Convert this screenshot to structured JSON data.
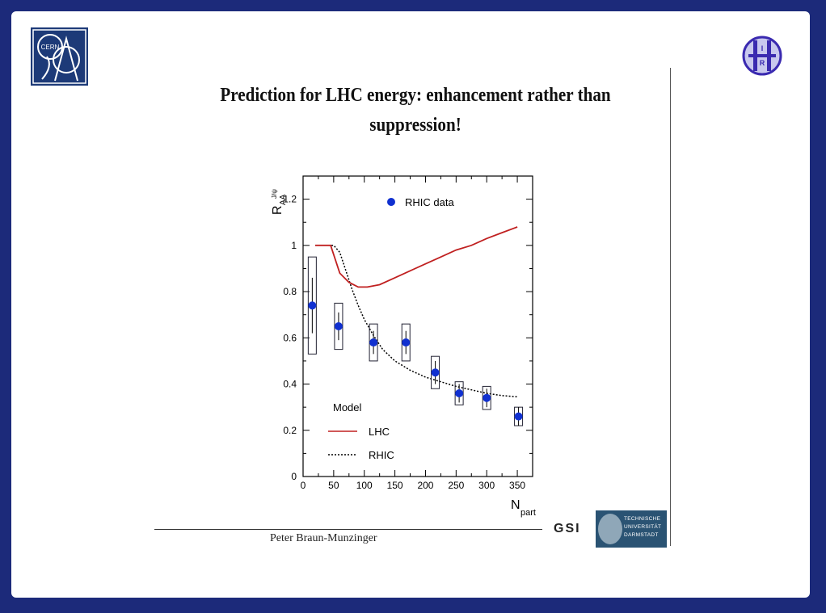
{
  "slide": {
    "title_line1": "Prediction for LHC energy:  enhancement rather than",
    "title_line2": "suppression!",
    "author": "Peter Braun-Munzinger",
    "logos": {
      "cern": "CERN",
      "inr": "INR",
      "gsi": "GSI",
      "tud": [
        "TECHNISCHE",
        "UNIVERSITÄT",
        "DARMSTADT"
      ]
    }
  },
  "colors": {
    "frame": "#1c2a7a",
    "data_points": "#1030d0",
    "lhc_curve": "#c02020",
    "rhic_curve": "#000000"
  },
  "chart_data": {
    "type": "scatter",
    "xlabel": "N",
    "xlabel_sub": "part",
    "ylabel": "R",
    "ylabel_sub": "AA",
    "ylabel_sup": "J/ψ",
    "xlim": [
      0,
      375
    ],
    "ylim": [
      0,
      1.3
    ],
    "xticks": [
      0,
      50,
      100,
      150,
      200,
      250,
      300,
      350
    ],
    "yticks": [
      0,
      0.2,
      0.4,
      0.6,
      0.8,
      1,
      1.2
    ],
    "ytick_labels": [
      "0",
      "0.2",
      "0.4",
      "0.6",
      "0.8",
      "1",
      "1.2"
    ],
    "grid": false,
    "legend_top": "RHIC data",
    "legend_model_title": "Model",
    "series": [
      {
        "name": "RHIC data",
        "kind": "points",
        "points": [
          {
            "x": 15,
            "y": 0.74,
            "err": 0.12,
            "sys": 0.21
          },
          {
            "x": 58,
            "y": 0.65,
            "err": 0.06,
            "sys": 0.1
          },
          {
            "x": 115,
            "y": 0.58,
            "err": 0.05,
            "sys": 0.08
          },
          {
            "x": 168,
            "y": 0.58,
            "err": 0.05,
            "sys": 0.08
          },
          {
            "x": 216,
            "y": 0.45,
            "err": 0.05,
            "sys": 0.07
          },
          {
            "x": 255,
            "y": 0.36,
            "err": 0.04,
            "sys": 0.05
          },
          {
            "x": 300,
            "y": 0.34,
            "err": 0.04,
            "sys": 0.05
          },
          {
            "x": 352,
            "y": 0.26,
            "err": 0.04,
            "sys": 0.04
          }
        ]
      },
      {
        "name": "LHC",
        "kind": "line",
        "x": [
          20,
          45,
          60,
          75,
          90,
          105,
          125,
          150,
          175,
          200,
          225,
          250,
          275,
          300,
          325,
          350
        ],
        "y": [
          1.0,
          1.0,
          0.88,
          0.84,
          0.82,
          0.82,
          0.83,
          0.86,
          0.89,
          0.92,
          0.95,
          0.98,
          1.0,
          1.03,
          1.055,
          1.08
        ]
      },
      {
        "name": "RHIC",
        "kind": "dashed",
        "x": [
          20,
          50,
          60,
          70,
          80,
          90,
          100,
          115,
          130,
          150,
          175,
          200,
          225,
          250,
          275,
          300,
          325,
          350
        ],
        "y": [
          1.0,
          1.0,
          0.97,
          0.89,
          0.81,
          0.74,
          0.68,
          0.61,
          0.55,
          0.5,
          0.46,
          0.43,
          0.41,
          0.39,
          0.375,
          0.36,
          0.35,
          0.345
        ]
      }
    ]
  }
}
